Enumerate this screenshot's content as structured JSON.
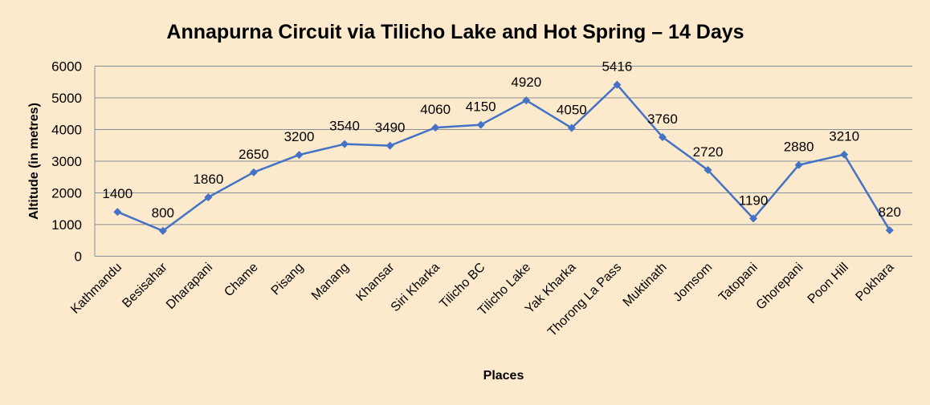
{
  "chart_data": {
    "type": "line",
    "title": "Annapurna Circuit via Tilicho Lake and Hot Spring – 14 Days",
    "xlabel": "Places",
    "ylabel": "Altitude (in metres)",
    "ylim": [
      0,
      6000
    ],
    "yticks": [
      0,
      1000,
      2000,
      3000,
      4000,
      5000,
      6000
    ],
    "grid": true,
    "legend": "none",
    "categories": [
      "Kathmandu",
      "Besisahar",
      "Dharapani",
      "Chame",
      "Pisang",
      "Manang",
      "Khansar",
      "Siri Kharka",
      "Tilicho BC",
      "Tilicho Lake",
      "Yak Kharka",
      "Thorong La Pass",
      "Muktinath",
      "Jomsom",
      "Tatopani",
      "Ghorepani",
      "Poon Hill",
      "Pokhara"
    ],
    "series": [
      {
        "values": [
          1400,
          800,
          1860,
          2650,
          3200,
          3540,
          3490,
          4060,
          4150,
          4920,
          4050,
          5416,
          3760,
          2720,
          1190,
          2880,
          3210,
          820
        ],
        "color": "#4472c4"
      }
    ],
    "data_labels": [
      "1400",
      "800",
      "1860",
      "2650",
      "3200",
      "3540",
      "3490",
      "4060",
      "4150",
      "4920",
      "4050",
      "5416",
      "3760",
      "2720",
      "1190",
      "2880",
      "3210",
      "820"
    ],
    "colors": {
      "background": "#fde9cc",
      "gridline": "#868e96",
      "line": "#4472c4"
    }
  }
}
